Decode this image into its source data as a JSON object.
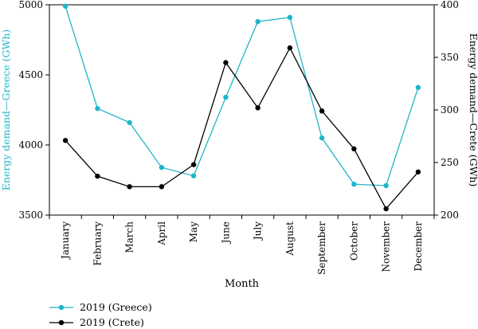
{
  "chart_data": {
    "type": "line",
    "categories": [
      "January",
      "February",
      "March",
      "April",
      "May",
      "June",
      "July",
      "August",
      "September",
      "October",
      "November",
      "December"
    ],
    "series": [
      {
        "name": "2019 (Greece)",
        "axis": "left",
        "color": "#1fb5c9",
        "values": [
          4990,
          4260,
          4160,
          3840,
          3780,
          4340,
          4880,
          4910,
          4050,
          3720,
          3710,
          4410
        ]
      },
      {
        "name": "2019 (Crete)",
        "axis": "right",
        "color": "#000000",
        "values": [
          271,
          237,
          227,
          227,
          248,
          345,
          302,
          359,
          299,
          263,
          206,
          241
        ]
      }
    ],
    "xlabel": "Month",
    "ylabel_left": "Energy demand—Greece (GWh)",
    "ylabel_right": "Energy demand—Crete (GWh)",
    "ylim_left": [
      3500,
      5000
    ],
    "ylim_right": [
      200,
      400
    ],
    "yticks_left": [
      "3500",
      "4000",
      "4500",
      "5000"
    ],
    "yticks_right": [
      "200",
      "250",
      "300",
      "350",
      "400"
    ],
    "grid": false,
    "legend_position": "bottom-left"
  }
}
